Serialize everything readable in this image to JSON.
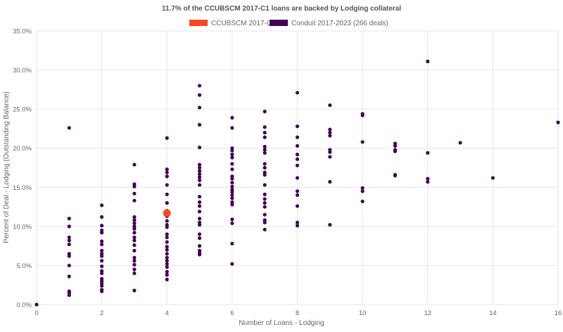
{
  "chart_data": {
    "type": "scatter",
    "title": "11.7% of the CCUBSCM 2017-C1 loans are backed by Lodging collateral",
    "xlabel": "Number of Loans - Lodging",
    "ylabel": "Percent of Deal - Lodging (Outstanding Balance)",
    "xlim": [
      0,
      16
    ],
    "ylim": [
      0,
      35
    ],
    "x_ticks": [
      "0",
      "2",
      "4",
      "6",
      "8",
      "10",
      "12",
      "14",
      "16"
    ],
    "x_tick_values": [
      0,
      2,
      4,
      6,
      8,
      10,
      12,
      14,
      16
    ],
    "y_ticks": [
      "0.0%",
      "5.0%",
      "10.0%",
      "15.0%",
      "20.0%",
      "25.0%",
      "30.0%",
      "35.0%"
    ],
    "y_tick_values": [
      0,
      5,
      10,
      15,
      20,
      25,
      30,
      35
    ],
    "grid": true,
    "legend_position": "top",
    "series": [
      {
        "name": "Conduit 2017-2023 (266 deals)",
        "color": "#440154",
        "points": [
          [
            0,
            0.0
          ],
          [
            1,
            22.6
          ],
          [
            1,
            11.0
          ],
          [
            1,
            10.0
          ],
          [
            1,
            8.6
          ],
          [
            1,
            8.2
          ],
          [
            1,
            7.7
          ],
          [
            1,
            6.5
          ],
          [
            1,
            6.2
          ],
          [
            1,
            5.0
          ],
          [
            1,
            3.6
          ],
          [
            1,
            1.7
          ],
          [
            1,
            1.5
          ],
          [
            1,
            1.2
          ],
          [
            2,
            12.7
          ],
          [
            2,
            11.2
          ],
          [
            2,
            10.1
          ],
          [
            2,
            9.5
          ],
          [
            2,
            9.2
          ],
          [
            2,
            8.1
          ],
          [
            2,
            7.7
          ],
          [
            2,
            6.9
          ],
          [
            2,
            6.5
          ],
          [
            2,
            6.2
          ],
          [
            2,
            5.6
          ],
          [
            2,
            4.9
          ],
          [
            2,
            4.3
          ],
          [
            2,
            4.0
          ],
          [
            2,
            3.3
          ],
          [
            2,
            3.0
          ],
          [
            2,
            2.7
          ],
          [
            2,
            2.4
          ],
          [
            2,
            1.9
          ],
          [
            2,
            1.7
          ],
          [
            3,
            17.9
          ],
          [
            3,
            15.4
          ],
          [
            3,
            15.1
          ],
          [
            3,
            14.2
          ],
          [
            3,
            13.3
          ],
          [
            3,
            11.2
          ],
          [
            3,
            10.8
          ],
          [
            3,
            10.4
          ],
          [
            3,
            10.0
          ],
          [
            3,
            9.7
          ],
          [
            3,
            9.2
          ],
          [
            3,
            8.6
          ],
          [
            3,
            8.2
          ],
          [
            3,
            7.6
          ],
          [
            3,
            6.9
          ],
          [
            3,
            6.0
          ],
          [
            3,
            5.6
          ],
          [
            3,
            5.1
          ],
          [
            3,
            4.5
          ],
          [
            3,
            4.0
          ],
          [
            3,
            1.8
          ],
          [
            4,
            21.3
          ],
          [
            4,
            17.3
          ],
          [
            4,
            16.9
          ],
          [
            4,
            16.4
          ],
          [
            4,
            15.3
          ],
          [
            4,
            14.1
          ],
          [
            4,
            13.0
          ],
          [
            4,
            12.0
          ],
          [
            4,
            11.3
          ],
          [
            4,
            10.7
          ],
          [
            4,
            10.2
          ],
          [
            4,
            9.9
          ],
          [
            4,
            9.0
          ],
          [
            4,
            8.6
          ],
          [
            4,
            8.0
          ],
          [
            4,
            7.4
          ],
          [
            4,
            7.0
          ],
          [
            4,
            6.5
          ],
          [
            4,
            6.0
          ],
          [
            4,
            5.6
          ],
          [
            4,
            5.2
          ],
          [
            4,
            4.8
          ],
          [
            4,
            4.2
          ],
          [
            4,
            3.8
          ],
          [
            4,
            3.2
          ],
          [
            5,
            28.0
          ],
          [
            5,
            26.8
          ],
          [
            5,
            25.2
          ],
          [
            5,
            23.0
          ],
          [
            5,
            20.1
          ],
          [
            5,
            17.9
          ],
          [
            5,
            17.5
          ],
          [
            5,
            17.1
          ],
          [
            5,
            16.7
          ],
          [
            5,
            16.3
          ],
          [
            5,
            15.9
          ],
          [
            5,
            15.3
          ],
          [
            5,
            13.8
          ],
          [
            5,
            13.1
          ],
          [
            5,
            12.6
          ],
          [
            5,
            11.9
          ],
          [
            5,
            11.0
          ],
          [
            5,
            10.5
          ],
          [
            5,
            10.2
          ],
          [
            5,
            9.0
          ],
          [
            5,
            8.5
          ],
          [
            5,
            7.5
          ],
          [
            5,
            6.9
          ],
          [
            5,
            6.6
          ],
          [
            5,
            6.4
          ],
          [
            6,
            23.9
          ],
          [
            6,
            22.6
          ],
          [
            6,
            20.0
          ],
          [
            6,
            19.7
          ],
          [
            6,
            19.2
          ],
          [
            6,
            18.8
          ],
          [
            6,
            18.0
          ],
          [
            6,
            17.3
          ],
          [
            6,
            16.4
          ],
          [
            6,
            16.1
          ],
          [
            6,
            15.6
          ],
          [
            6,
            15.1
          ],
          [
            6,
            14.7
          ],
          [
            6,
            14.4
          ],
          [
            6,
            14.0
          ],
          [
            6,
            13.6
          ],
          [
            6,
            13.1
          ],
          [
            6,
            12.8
          ],
          [
            6,
            10.9
          ],
          [
            6,
            10.4
          ],
          [
            6,
            7.8
          ],
          [
            6,
            5.2
          ],
          [
            7,
            24.7
          ],
          [
            7,
            22.7
          ],
          [
            7,
            22.0
          ],
          [
            7,
            21.4
          ],
          [
            7,
            20.2
          ],
          [
            7,
            19.8
          ],
          [
            7,
            19.4
          ],
          [
            7,
            18.0
          ],
          [
            7,
            17.5
          ],
          [
            7,
            16.9
          ],
          [
            7,
            16.6
          ],
          [
            7,
            15.3
          ],
          [
            7,
            14.1
          ],
          [
            7,
            13.5
          ],
          [
            7,
            13.0
          ],
          [
            7,
            12.5
          ],
          [
            7,
            11.5
          ],
          [
            7,
            10.8
          ],
          [
            7,
            10.5
          ],
          [
            7,
            9.6
          ],
          [
            8,
            27.1
          ],
          [
            8,
            22.8
          ],
          [
            8,
            21.4
          ],
          [
            8,
            20.3
          ],
          [
            8,
            19.2
          ],
          [
            8,
            18.6
          ],
          [
            8,
            17.8
          ],
          [
            8,
            16.2
          ],
          [
            8,
            14.5
          ],
          [
            8,
            14.0
          ],
          [
            8,
            12.6
          ],
          [
            8,
            10.5
          ],
          [
            8,
            10.1
          ],
          [
            9,
            25.5
          ],
          [
            9,
            22.4
          ],
          [
            9,
            22.0
          ],
          [
            9,
            21.6
          ],
          [
            9,
            19.8
          ],
          [
            9,
            19.5
          ],
          [
            9,
            18.9
          ],
          [
            9,
            15.7
          ],
          [
            9,
            10.2
          ],
          [
            10,
            24.4
          ],
          [
            10,
            24.2
          ],
          [
            10,
            20.8
          ],
          [
            10,
            14.9
          ],
          [
            10,
            14.5
          ],
          [
            10,
            13.2
          ],
          [
            11,
            20.6
          ],
          [
            11,
            20.3
          ],
          [
            11,
            19.8
          ],
          [
            11,
            19.6
          ],
          [
            11,
            16.6
          ],
          [
            11,
            16.5
          ],
          [
            12,
            31.1
          ],
          [
            12,
            19.4
          ],
          [
            12,
            16.1
          ],
          [
            12,
            15.7
          ],
          [
            13,
            20.7
          ],
          [
            14,
            16.2
          ],
          [
            16,
            23.3
          ]
        ]
      },
      {
        "name": "CCUBSCM 2017-C1",
        "color": "#ff4422",
        "points": [
          [
            4,
            11.7
          ]
        ]
      }
    ]
  }
}
